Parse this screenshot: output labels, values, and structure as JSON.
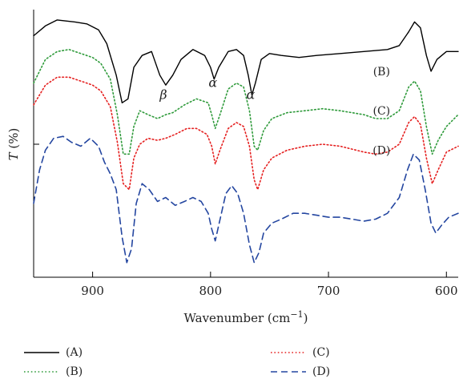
{
  "chart_data": {
    "type": "line",
    "xlabel_base": "Wavenumber (cm",
    "xlabel_sup": "−1",
    "xlabel_close": ")",
    "ylabel_italic": "T",
    "ylabel_rest": " (%)",
    "xlim": [
      950,
      590
    ],
    "x_ticks": [
      900,
      800,
      700,
      600
    ],
    "x_tick_labels": [
      "900",
      "800",
      "700",
      "600"
    ],
    "annotations": [
      {
        "text": "β",
        "x": 840,
        "y": 48
      },
      {
        "text": "α",
        "x": 798,
        "y": 54
      },
      {
        "text": "α",
        "x": 766,
        "y": 48
      }
    ],
    "series": [
      {
        "name": "(A)",
        "color": "#000000",
        "dash": "solid",
        "label_x": 655,
        "label_y": 100,
        "points": [
          [
            950,
            80
          ],
          [
            940,
            85
          ],
          [
            930,
            88
          ],
          [
            915,
            87
          ],
          [
            905,
            86
          ],
          [
            895,
            83
          ],
          [
            888,
            76
          ],
          [
            880,
            60
          ],
          [
            875,
            46
          ],
          [
            870,
            48
          ],
          [
            865,
            64
          ],
          [
            858,
            70
          ],
          [
            850,
            72
          ],
          [
            843,
            60
          ],
          [
            838,
            55
          ],
          [
            832,
            60
          ],
          [
            825,
            68
          ],
          [
            815,
            73
          ],
          [
            805,
            70
          ],
          [
            800,
            64
          ],
          [
            797,
            58
          ],
          [
            793,
            64
          ],
          [
            785,
            72
          ],
          [
            778,
            73
          ],
          [
            772,
            70
          ],
          [
            768,
            60
          ],
          [
            765,
            50
          ],
          [
            762,
            56
          ],
          [
            757,
            68
          ],
          [
            750,
            71
          ],
          [
            740,
            70
          ],
          [
            725,
            69
          ],
          [
            710,
            70
          ],
          [
            690,
            71
          ],
          [
            670,
            72
          ],
          [
            650,
            73
          ],
          [
            640,
            75
          ],
          [
            632,
            82
          ],
          [
            627,
            87
          ],
          [
            622,
            84
          ],
          [
            617,
            70
          ],
          [
            613,
            62
          ],
          [
            608,
            68
          ],
          [
            600,
            72
          ],
          [
            590,
            72
          ]
        ]
      },
      {
        "name": "(B)",
        "color": "#2e9a3a",
        "dash": "dot",
        "label_x": 655,
        "label_y": 60,
        "points": [
          [
            950,
            56
          ],
          [
            940,
            68
          ],
          [
            930,
            72
          ],
          [
            920,
            73
          ],
          [
            910,
            71
          ],
          [
            900,
            69
          ],
          [
            893,
            66
          ],
          [
            885,
            58
          ],
          [
            879,
            40
          ],
          [
            874,
            20
          ],
          [
            869,
            20
          ],
          [
            865,
            34
          ],
          [
            860,
            42
          ],
          [
            853,
            40
          ],
          [
            845,
            38
          ],
          [
            838,
            40
          ],
          [
            832,
            41
          ],
          [
            822,
            45
          ],
          [
            812,
            48
          ],
          [
            802,
            46
          ],
          [
            799,
            40
          ],
          [
            796,
            33
          ],
          [
            792,
            40
          ],
          [
            785,
            53
          ],
          [
            778,
            56
          ],
          [
            772,
            54
          ],
          [
            767,
            42
          ],
          [
            763,
            24
          ],
          [
            760,
            22
          ],
          [
            755,
            32
          ],
          [
            748,
            38
          ],
          [
            735,
            41
          ],
          [
            720,
            42
          ],
          [
            705,
            43
          ],
          [
            690,
            42
          ],
          [
            670,
            40
          ],
          [
            660,
            38
          ],
          [
            650,
            38
          ],
          [
            640,
            42
          ],
          [
            632,
            54
          ],
          [
            627,
            57
          ],
          [
            622,
            52
          ],
          [
            617,
            34
          ],
          [
            612,
            20
          ],
          [
            607,
            27
          ],
          [
            600,
            34
          ],
          [
            590,
            40
          ]
        ]
      },
      {
        "name": "(C)",
        "color": "#e52020",
        "dash": "dot",
        "label_x": 655,
        "label_y": 40,
        "points": [
          [
            950,
            45
          ],
          [
            940,
            55
          ],
          [
            930,
            59
          ],
          [
            920,
            59
          ],
          [
            910,
            57
          ],
          [
            900,
            55
          ],
          [
            893,
            52
          ],
          [
            885,
            44
          ],
          [
            879,
            26
          ],
          [
            874,
            5
          ],
          [
            869,
            2
          ],
          [
            865,
            18
          ],
          [
            860,
            25
          ],
          [
            853,
            28
          ],
          [
            845,
            27
          ],
          [
            838,
            28
          ],
          [
            830,
            30
          ],
          [
            820,
            33
          ],
          [
            812,
            33
          ],
          [
            803,
            30
          ],
          [
            799,
            24
          ],
          [
            796,
            15
          ],
          [
            792,
            22
          ],
          [
            785,
            33
          ],
          [
            778,
            36
          ],
          [
            772,
            34
          ],
          [
            767,
            24
          ],
          [
            763,
            7
          ],
          [
            760,
            2
          ],
          [
            755,
            12
          ],
          [
            748,
            18
          ],
          [
            735,
            22
          ],
          [
            720,
            24
          ],
          [
            705,
            25
          ],
          [
            690,
            24
          ],
          [
            670,
            21
          ],
          [
            660,
            20
          ],
          [
            650,
            21
          ],
          [
            640,
            25
          ],
          [
            632,
            36
          ],
          [
            627,
            39
          ],
          [
            622,
            35
          ],
          [
            617,
            18
          ],
          [
            612,
            5
          ],
          [
            607,
            12
          ],
          [
            600,
            21
          ],
          [
            590,
            24
          ]
        ]
      },
      {
        "name": "(D)",
        "color": "#2446a0",
        "dash": "dash",
        "label_x": 655,
        "label_y": 20,
        "points": [
          [
            950,
            -5
          ],
          [
            945,
            12
          ],
          [
            940,
            22
          ],
          [
            933,
            28
          ],
          [
            925,
            29
          ],
          [
            918,
            26
          ],
          [
            910,
            24
          ],
          [
            902,
            28
          ],
          [
            895,
            24
          ],
          [
            890,
            16
          ],
          [
            885,
            10
          ],
          [
            880,
            2
          ],
          [
            875,
            -22
          ],
          [
            871,
            -35
          ],
          [
            867,
            -28
          ],
          [
            863,
            -5
          ],
          [
            858,
            5
          ],
          [
            852,
            2
          ],
          [
            845,
            -4
          ],
          [
            838,
            -2
          ],
          [
            830,
            -6
          ],
          [
            822,
            -4
          ],
          [
            815,
            -2
          ],
          [
            808,
            -4
          ],
          [
            802,
            -10
          ],
          [
            799,
            -18
          ],
          [
            796,
            -24
          ],
          [
            793,
            -16
          ],
          [
            787,
            0
          ],
          [
            782,
            4
          ],
          [
            777,
            0
          ],
          [
            772,
            -10
          ],
          [
            767,
            -26
          ],
          [
            763,
            -35
          ],
          [
            759,
            -30
          ],
          [
            755,
            -20
          ],
          [
            748,
            -15
          ],
          [
            740,
            -13
          ],
          [
            730,
            -10
          ],
          [
            720,
            -10
          ],
          [
            710,
            -11
          ],
          [
            700,
            -12
          ],
          [
            690,
            -12
          ],
          [
            680,
            -13
          ],
          [
            670,
            -14
          ],
          [
            660,
            -13
          ],
          [
            650,
            -10
          ],
          [
            640,
            -2
          ],
          [
            633,
            12
          ],
          [
            628,
            20
          ],
          [
            623,
            17
          ],
          [
            618,
            2
          ],
          [
            613,
            -15
          ],
          [
            609,
            -20
          ],
          [
            604,
            -16
          ],
          [
            598,
            -12
          ],
          [
            590,
            -10
          ]
        ]
      }
    ]
  }
}
